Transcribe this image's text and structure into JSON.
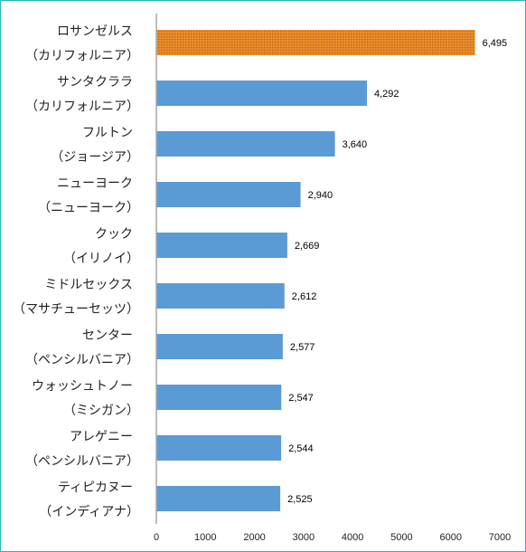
{
  "chart_data": {
    "type": "bar",
    "orientation": "horizontal",
    "categories": [
      [
        "ロサンゼルス",
        "（カリフォルニア）"
      ],
      [
        "サンタクララ",
        "（カリフォルニア）"
      ],
      [
        "フルトン",
        "（ジョージア）"
      ],
      [
        "ニューヨーク",
        "（ニューヨーク）"
      ],
      [
        "クック",
        "（イリノイ）"
      ],
      [
        "ミドルセックス",
        "（マサチューセッツ）"
      ],
      [
        "センター",
        "（ペンシルバニア）"
      ],
      [
        "ウォッシュトノー",
        "（ミシガン）"
      ],
      [
        "アレゲニー",
        "（ペンシルバニア）"
      ],
      [
        "ティピカヌー",
        "（インディアナ）"
      ]
    ],
    "values": [
      6495,
      4292,
      3640,
      2940,
      2669,
      2612,
      2577,
      2547,
      2544,
      2525
    ],
    "value_labels": [
      "6,495",
      "4,292",
      "3,640",
      "2,940",
      "2,669",
      "2,612",
      "2,577",
      "2,547",
      "2,544",
      "2,525"
    ],
    "highlight_index": 0,
    "xlim": [
      0,
      7000
    ],
    "xticks": [
      0,
      1000,
      2000,
      3000,
      4000,
      5000,
      6000,
      7000
    ],
    "title": "",
    "xlabel": "",
    "ylabel": "",
    "grid": false,
    "colors": {
      "bar": "#5b9bd5",
      "highlight_bar": "#e98f2a",
      "highlight_pattern_dot": "#c0601a",
      "axis": "#a6a6a6",
      "frame": "#2bb5b5"
    }
  }
}
